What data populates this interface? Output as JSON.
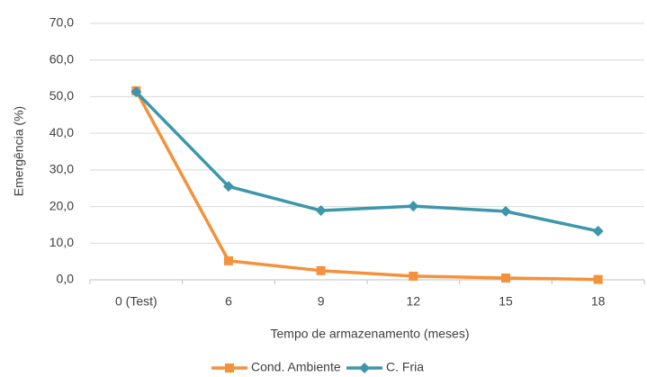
{
  "chart_data": {
    "type": "line",
    "y_label": "Emergência (%)",
    "x_label": "Tempo de armazenamento (meses)",
    "categories": [
      "0 (Test)",
      "6",
      "9",
      "12",
      "15",
      "18"
    ],
    "series": [
      {
        "name": "Cond. Ambiente",
        "color": "#f4913b",
        "marker": "square",
        "values": [
          51.6,
          5.2,
          2.5,
          1.0,
          0.5,
          0.1
        ]
      },
      {
        "name": "C. Fria",
        "color": "#3c97ac",
        "marker": "diamond",
        "values": [
          51.3,
          25.5,
          18.9,
          20.1,
          18.7,
          13.3
        ]
      }
    ],
    "ylim": [
      0,
      70
    ],
    "yticks": [
      {
        "value": 0,
        "label": "0,0"
      },
      {
        "value": 10,
        "label": "10,0"
      },
      {
        "value": 20,
        "label": "20,0"
      },
      {
        "value": 30,
        "label": "30,0"
      },
      {
        "value": 40,
        "label": "40,0"
      },
      {
        "value": 50,
        "label": "50,0"
      },
      {
        "value": 60,
        "label": "60,0"
      },
      {
        "value": 70,
        "label": "70,0"
      }
    ],
    "grid": true,
    "legend": "bottom"
  }
}
